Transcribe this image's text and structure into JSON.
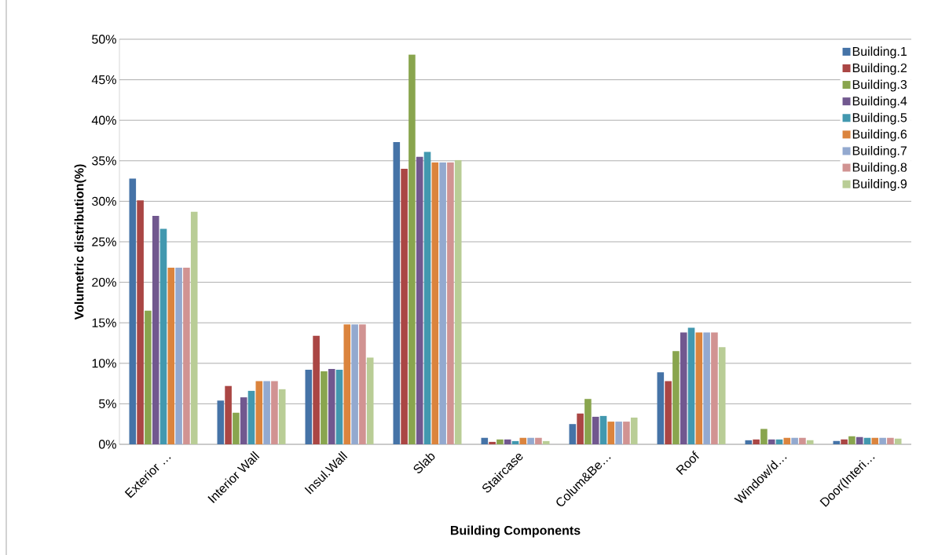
{
  "chart_data": {
    "type": "bar",
    "xlabel": "Building Components",
    "ylabel": "Volumetric distribution(%)",
    "categories": [
      "Exterior …",
      "Interior Wall",
      "Insul.Wall",
      "Slab",
      "Staircase",
      "Colum&Be…",
      "Roof",
      "Window/d…",
      "Door(Interi…"
    ],
    "series": [
      {
        "name": "Building.1",
        "color": "#4573a7",
        "values": [
          32.8,
          5.4,
          9.2,
          37.3,
          0.8,
          2.5,
          8.9,
          0.5,
          0.4
        ]
      },
      {
        "name": "Building.2",
        "color": "#aa4644",
        "values": [
          30.1,
          7.2,
          13.4,
          34.0,
          0.3,
          3.8,
          7.8,
          0.6,
          0.6
        ]
      },
      {
        "name": "Building.3",
        "color": "#89a54e",
        "values": [
          16.5,
          3.9,
          9.0,
          48.1,
          0.6,
          5.6,
          11.5,
          1.9,
          1.0
        ]
      },
      {
        "name": "Building.4",
        "color": "#71588f",
        "values": [
          28.2,
          5.8,
          9.3,
          35.5,
          0.6,
          3.4,
          13.8,
          0.6,
          0.9
        ]
      },
      {
        "name": "Building.5",
        "color": "#4298af",
        "values": [
          26.6,
          6.6,
          9.2,
          36.1,
          0.4,
          3.5,
          14.4,
          0.6,
          0.8
        ]
      },
      {
        "name": "Building.6",
        "color": "#db843d",
        "values": [
          21.8,
          7.8,
          14.8,
          34.8,
          0.8,
          2.8,
          13.8,
          0.8,
          0.8
        ]
      },
      {
        "name": "Building.7",
        "color": "#93a9cf",
        "values": [
          21.8,
          7.8,
          14.8,
          34.8,
          0.8,
          2.8,
          13.8,
          0.8,
          0.8
        ]
      },
      {
        "name": "Building.8",
        "color": "#d19392",
        "values": [
          21.8,
          7.8,
          14.8,
          34.8,
          0.8,
          2.8,
          13.8,
          0.8,
          0.8
        ]
      },
      {
        "name": "Building.9",
        "color": "#b9cd96",
        "values": [
          28.7,
          6.8,
          10.7,
          35.1,
          0.4,
          3.3,
          12.0,
          0.5,
          0.7
        ]
      }
    ],
    "ylim": [
      0,
      50
    ],
    "yticks": [
      {
        "value": 0,
        "label": "0%"
      },
      {
        "value": 5,
        "label": "5%"
      },
      {
        "value": 10,
        "label": "10%"
      },
      {
        "value": 15,
        "label": "15%"
      },
      {
        "value": 20,
        "label": "20%"
      },
      {
        "value": 25,
        "label": "25%"
      },
      {
        "value": 30,
        "label": "30%"
      },
      {
        "value": 35,
        "label": "35%"
      },
      {
        "value": 40,
        "label": "40%"
      },
      {
        "value": 45,
        "label": "45%"
      },
      {
        "value": 50,
        "label": "50%"
      }
    ],
    "grid": "y",
    "legend": "top right"
  }
}
